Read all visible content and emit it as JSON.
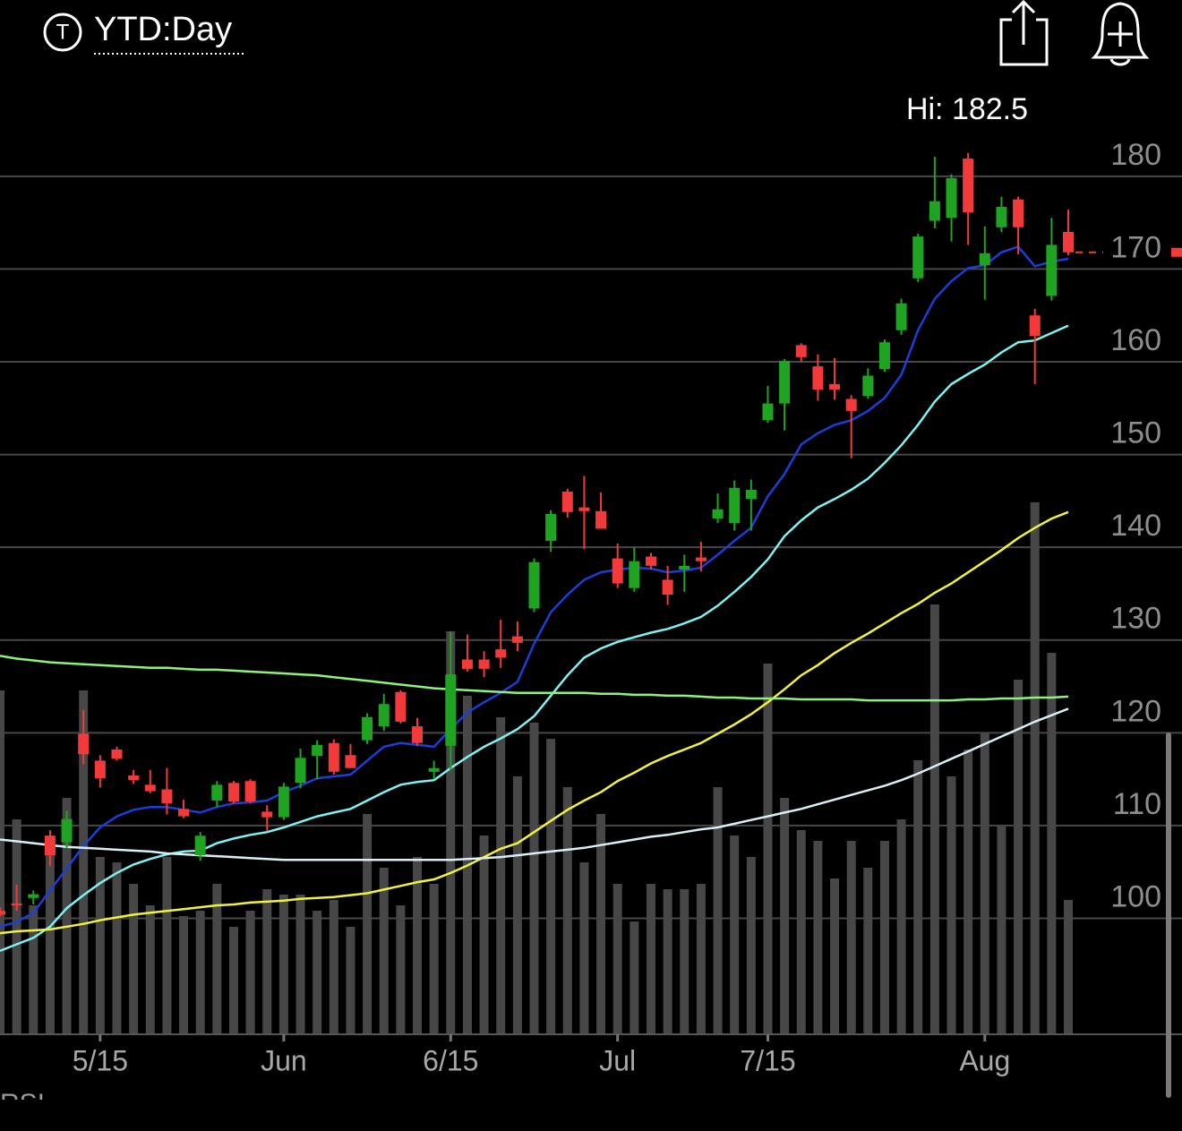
{
  "header": {
    "icon_letter": "T",
    "range_label": "YTD:Day"
  },
  "chart_data": {
    "type": "candlestick",
    "annotation": "Hi: 182.5",
    "categories": [
      null,
      null,
      null,
      null,
      null,
      null,
      "5/15",
      null,
      null,
      null,
      null,
      null,
      null,
      null,
      null,
      null,
      null,
      "Jun",
      null,
      null,
      null,
      null,
      null,
      null,
      null,
      null,
      null,
      "6/15",
      null,
      null,
      null,
      null,
      null,
      null,
      null,
      null,
      null,
      "Jul",
      null,
      null,
      null,
      null,
      null,
      null,
      null,
      null,
      "7/15",
      null,
      null,
      null,
      null,
      null,
      null,
      null,
      null,
      null,
      null,
      null,
      null,
      "Aug",
      null,
      null,
      null,
      null,
      null
    ],
    "open": [
      100.8,
      101.6,
      102.2,
      108.9,
      108.2,
      119.9,
      117,
      118.2,
      115.4,
      114.4,
      113.9,
      111.8,
      106.8,
      112.7,
      114.6,
      114.8,
      111.5,
      110.9,
      114.6,
      117.5,
      118.9,
      117.6,
      119.2,
      120.7,
      124.4,
      120.7,
      115.8,
      118.6,
      127.9,
      127.9,
      129,
      130.4,
      133.4,
      140.7,
      146,
      144.3,
      143.9,
      138.8,
      135.6,
      139,
      136.5,
      137.6,
      138.9,
      143.1,
      142.6,
      145.2,
      153.7,
      155.5,
      161.8,
      159.5,
      157.6,
      156,
      156.3,
      159.2,
      163.4,
      169,
      175.2,
      175.5,
      181.9,
      170.4,
      174.5,
      177.5,
      165,
      167.1,
      174
    ],
    "high": [
      101.2,
      103.6,
      103,
      109.5,
      111.6,
      122.5,
      117.6,
      118.5,
      116,
      116,
      116.2,
      112.8,
      109.3,
      114.8,
      114.8,
      115,
      112.2,
      114.6,
      118.3,
      119.2,
      119.3,
      118.8,
      122.1,
      124.2,
      124.6,
      121.6,
      117,
      130.9,
      130.6,
      128.8,
      132.2,
      132,
      138.8,
      144,
      146.3,
      147.7,
      145.9,
      140.4,
      140,
      139.4,
      138,
      139.2,
      140.6,
      145.8,
      147.2,
      147.3,
      157.4,
      160.3,
      162,
      160.8,
      160.4,
      156.4,
      159.3,
      162.4,
      166.8,
      173.8,
      182.1,
      180.2,
      182.5,
      174.6,
      177.8,
      177.8,
      165.7,
      175.5,
      176.4
    ],
    "low": [
      100.2,
      100.8,
      101.5,
      105.6,
      107.6,
      116.6,
      114.1,
      117,
      114.5,
      113.5,
      111.2,
      110.8,
      106.2,
      112,
      112.4,
      112.4,
      109.4,
      110.6,
      114,
      115,
      115.5,
      116.2,
      118.8,
      120.2,
      121,
      118.6,
      115,
      116,
      126.6,
      126,
      127,
      128.8,
      133,
      139.5,
      143.2,
      139.8,
      142,
      135.6,
      135.2,
      137.6,
      133.8,
      135.2,
      137.4,
      142.6,
      141.8,
      141.8,
      153.4,
      152.6,
      160,
      155.8,
      155.9,
      149.6,
      156,
      158.9,
      162.9,
      168.6,
      174.4,
      173,
      172.6,
      166.7,
      174,
      171.6,
      157.6,
      166.6,
      171.5
    ],
    "close": [
      100.4,
      101.4,
      102.6,
      106.8,
      110.7,
      117.7,
      115.1,
      117.2,
      114.9,
      113.7,
      112.4,
      111,
      108.9,
      114.4,
      112.6,
      112.6,
      110.9,
      114.2,
      117.3,
      118.7,
      115.8,
      116.2,
      121.7,
      123.1,
      121.2,
      118.9,
      116.2,
      126.3,
      126.9,
      126.9,
      128.1,
      129.7,
      138.4,
      143.6,
      143.8,
      143.9,
      142,
      136.1,
      138.5,
      138,
      134.9,
      138,
      138.5,
      144.1,
      146.4,
      146.2,
      155.5,
      160.1,
      160.5,
      157,
      157,
      154.7,
      158.5,
      162.1,
      166.3,
      173.5,
      177.3,
      179.8,
      176.1,
      171.7,
      176.7,
      174.5,
      162.8,
      172.6,
      171.8
    ],
    "volume": [
      64,
      40,
      24,
      37,
      44,
      64,
      33,
      32,
      28,
      24,
      33,
      22,
      23,
      28,
      20,
      23,
      27,
      26,
      26,
      23,
      25,
      20,
      41,
      31,
      24,
      33,
      28,
      75,
      63,
      37,
      59,
      48,
      58,
      55,
      46,
      32,
      41,
      28,
      21,
      28,
      27,
      27,
      28,
      46,
      37,
      33,
      69,
      44,
      38,
      36,
      29,
      36,
      31,
      36,
      40,
      51,
      80,
      48,
      53,
      56,
      39,
      66,
      99,
      71,
      25
    ],
    "moving_averages": [
      {
        "color": "#1c3ed8",
        "values": [
          99.1,
          99.6,
          100.6,
          103,
          105.4,
          107.8,
          109.8,
          111,
          111.7,
          112,
          112,
          111.7,
          111.4,
          112,
          112.4,
          112.5,
          112.7,
          113.6,
          114.3,
          115.1,
          115.3,
          115.5,
          117,
          118.5,
          118.9,
          118.7,
          118.5,
          120.4,
          122.2,
          123.3,
          124.3,
          125.5,
          129.6,
          133,
          134.9,
          136.5,
          137.3,
          137.6,
          137.8,
          137.7,
          137.3,
          137.5,
          137.8,
          139.2,
          140.7,
          142.1,
          145.5,
          147.9,
          151.1,
          152.3,
          153.2,
          153.7,
          154.7,
          156.1,
          158.6,
          163.4,
          166.8,
          168.7,
          170.1,
          170.4,
          171.8,
          172.4,
          170.3,
          170.8,
          171.1
        ]
      },
      {
        "color": "#7ff2f2",
        "values": [
          96.5,
          97.2,
          97.9,
          99.1,
          101.1,
          102.5,
          103.8,
          104.9,
          105.8,
          106.4,
          106.9,
          107.2,
          107.3,
          108.1,
          108.6,
          109,
          109.3,
          109.8,
          110.4,
          111,
          111.4,
          111.8,
          112.7,
          113.6,
          114.4,
          114.7,
          114.9,
          116.2,
          117.4,
          118.5,
          119.4,
          120.4,
          121.8,
          124,
          126.2,
          128.1,
          129.1,
          129.8,
          130.3,
          130.8,
          131.2,
          131.8,
          132.5,
          133.7,
          135.2,
          136.8,
          138.7,
          141.2,
          142.9,
          144.3,
          145.2,
          146.2,
          147.4,
          149.1,
          151,
          153.2,
          155.7,
          157.6,
          158.7,
          159.7,
          161,
          162.1,
          162.3,
          163.1,
          163.9
        ]
      },
      {
        "color": "#f3f23a",
        "values": [
          98.4,
          98.6,
          98.7,
          98.8,
          99.1,
          99.4,
          99.8,
          100.1,
          100.4,
          100.6,
          100.8,
          101,
          101.2,
          101.4,
          101.5,
          101.7,
          101.8,
          101.9,
          102.1,
          102.2,
          102.3,
          102.5,
          102.7,
          103.1,
          103.5,
          103.9,
          104.2,
          104.9,
          105.7,
          106.6,
          107.5,
          108.1,
          109.3,
          110.5,
          111.7,
          112.7,
          113.6,
          114.8,
          115.7,
          116.7,
          117.5,
          118.2,
          118.9,
          119.9,
          120.9,
          122,
          123.3,
          124.7,
          126.2,
          127.3,
          128.6,
          129.7,
          130.7,
          131.8,
          132.9,
          133.9,
          135.1,
          136.1,
          137.3,
          138.5,
          139.7,
          141,
          142.1,
          143.1,
          143.8
        ]
      },
      {
        "color": "#8ff27c",
        "values": [
          128.3,
          128,
          127.8,
          127.6,
          127.5,
          127.4,
          127.3,
          127.2,
          127.1,
          127,
          127,
          126.9,
          126.8,
          126.8,
          126.7,
          126.6,
          126.5,
          126.4,
          126.3,
          126.2,
          126,
          125.8,
          125.6,
          125.4,
          125.2,
          125,
          124.8,
          124.7,
          124.6,
          124.5,
          124.4,
          124.3,
          124.3,
          124.3,
          124.3,
          124.3,
          124.2,
          124.2,
          124.1,
          124.1,
          124,
          124,
          123.9,
          123.8,
          123.8,
          123.7,
          123.7,
          123.7,
          123.6,
          123.6,
          123.6,
          123.6,
          123.5,
          123.5,
          123.5,
          123.5,
          123.5,
          123.5,
          123.6,
          123.6,
          123.7,
          123.7,
          123.8,
          123.8,
          123.9
        ]
      },
      {
        "color": "#d9eff5",
        "values": [
          108.5,
          108.3,
          108.1,
          107.9,
          107.7,
          107.6,
          107.5,
          107.4,
          107.3,
          107.2,
          107,
          106.9,
          106.8,
          106.7,
          106.6,
          106.5,
          106.4,
          106.3,
          106.3,
          106.3,
          106.3,
          106.3,
          106.3,
          106.3,
          106.3,
          106.3,
          106.3,
          106.3,
          106.4,
          106.5,
          106.6,
          106.8,
          107,
          107.2,
          107.4,
          107.6,
          107.9,
          108.2,
          108.5,
          108.8,
          109,
          109.3,
          109.6,
          109.8,
          110.2,
          110.6,
          111,
          111.4,
          111.8,
          112.3,
          112.8,
          113.3,
          113.8,
          114.3,
          114.9,
          115.6,
          116.4,
          117.2,
          118,
          118.8,
          119.6,
          120.4,
          121.2,
          121.9,
          122.6
        ]
      }
    ],
    "up_color": "#1fa421",
    "down_color": "#f23a3a",
    "volume_color": "#474747",
    "last_price": 171.8,
    "ylim": [
      87.5,
      199
    ],
    "yticks": [
      100,
      110,
      120,
      130,
      140,
      150,
      160,
      170,
      180
    ],
    "grid": true,
    "lower_panel_label": "RSI"
  }
}
